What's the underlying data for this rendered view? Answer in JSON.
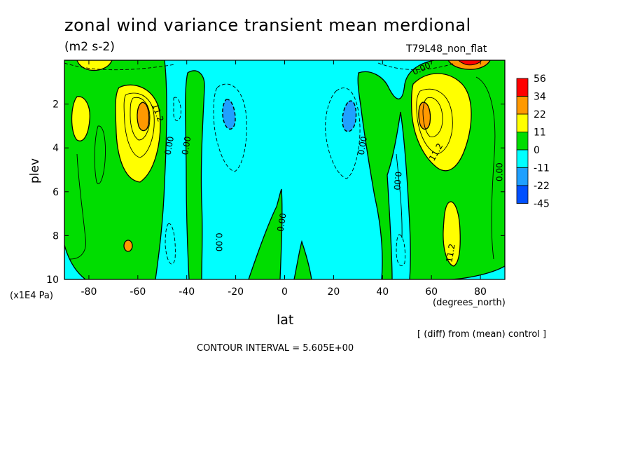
{
  "chart_data": {
    "type": "heatmap",
    "title": "zonal wind variance transient mean merdional",
    "subtitle": "(m2 s-2)",
    "run_label": "T79L48_non_flat",
    "xlabel": "lat",
    "x_unit": "(degrees_north)",
    "ylabel": "plev",
    "y_unit": "(x1E4 Pa)",
    "xlim": [
      -90,
      90
    ],
    "ylim": [
      10,
      0
    ],
    "x_ticks": [
      -80,
      -60,
      -40,
      -20,
      0,
      20,
      40,
      60,
      80
    ],
    "y_ticks": [
      2,
      4,
      6,
      8,
      10
    ],
    "colorbar": {
      "levels": [
        "56",
        "34",
        "22",
        "11",
        "0",
        "-11",
        "-22",
        "-45"
      ],
      "colors": [
        "#ff0000",
        "#ff9900",
        "#ffff00",
        "#00dd00",
        "#00ffff",
        "#1fa0ff",
        "#0050ff"
      ]
    },
    "contour_labels": [
      {
        "text": "0.00",
        "lat": -47,
        "plev": 3.9,
        "rotate": -80
      },
      {
        "text": "0.00",
        "lat": -40,
        "plev": 3.9,
        "rotate": -80
      },
      {
        "text": "0.00",
        "lat": -27,
        "plev": 8.3,
        "rotate": 90
      },
      {
        "text": "0.00",
        "lat": -1,
        "plev": 7.4,
        "rotate": -80
      },
      {
        "text": "0.00",
        "lat": 32,
        "plev": 3.9,
        "rotate": -80
      },
      {
        "text": "0.00",
        "lat": 46,
        "plev": 5.5,
        "rotate": 95
      },
      {
        "text": "0.00",
        "lat": 56,
        "plev": 0.4,
        "rotate": -25
      },
      {
        "text": "0.00",
        "lat": 88,
        "plev": 5.1,
        "rotate": -90
      },
      {
        "text": "11.2",
        "lat": -52,
        "plev": 2.4,
        "rotate": 70
      },
      {
        "text": "11.2",
        "lat": 62,
        "plev": 4.2,
        "rotate": -60
      },
      {
        "text": "11.2",
        "lat": 68,
        "plev": 8.8,
        "rotate": -80
      }
    ],
    "annotation": "[ (diff) from (mean) control ]",
    "contour_interval": "CONTOUR INTERVAL = 5.605E+00"
  }
}
